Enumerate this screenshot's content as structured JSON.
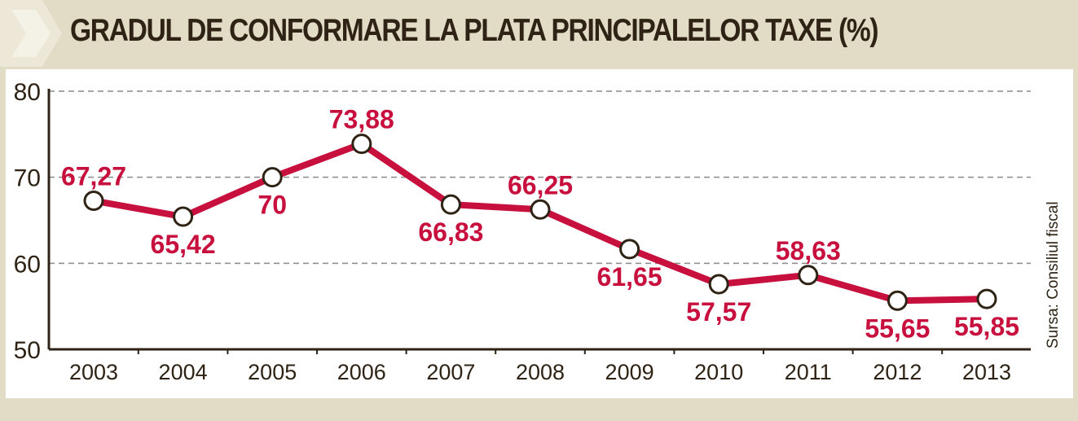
{
  "title": "GRADUL DE CONFORMARE LA PLATA PRINCIPALELOR TAXE (%)",
  "source": "Sursa: Consiliul fiscal",
  "colors": {
    "frame": "#e2dcc6",
    "title": "#2e2314",
    "line": "#c8103e",
    "label": "#c8103e",
    "axis": "#2e2314",
    "grid": "#8a8a8a"
  },
  "chart_data": {
    "type": "line",
    "title": "GRADUL DE CONFORMARE LA PLATA PRINCIPALELOR TAXE (%)",
    "xlabel": "",
    "ylabel": "",
    "categories": [
      "2003",
      "2004",
      "2005",
      "2006",
      "2007",
      "2008",
      "2009",
      "2010",
      "2011",
      "2012",
      "2013"
    ],
    "series": [
      {
        "values": [
          67.27,
          65.42,
          70,
          73.88,
          66.83,
          66.25,
          61.65,
          57.57,
          58.63,
          55.65,
          55.85
        ],
        "labels": [
          "67,27",
          "65,42",
          "70",
          "73,88",
          "66,83",
          "66,25",
          "61,65",
          "57,57",
          "58,63",
          "55,65",
          "55,85"
        ],
        "label_position": [
          "above",
          "below",
          "below",
          "above",
          "below",
          "above",
          "below",
          "below",
          "above",
          "below",
          "below"
        ]
      }
    ],
    "ylim": [
      50,
      80
    ],
    "yticks": [
      50,
      60,
      70,
      80
    ],
    "ytick_labels": [
      "50",
      "60",
      "70",
      "80"
    ],
    "grid": true,
    "grid_style": "dashed",
    "legend": "none"
  }
}
